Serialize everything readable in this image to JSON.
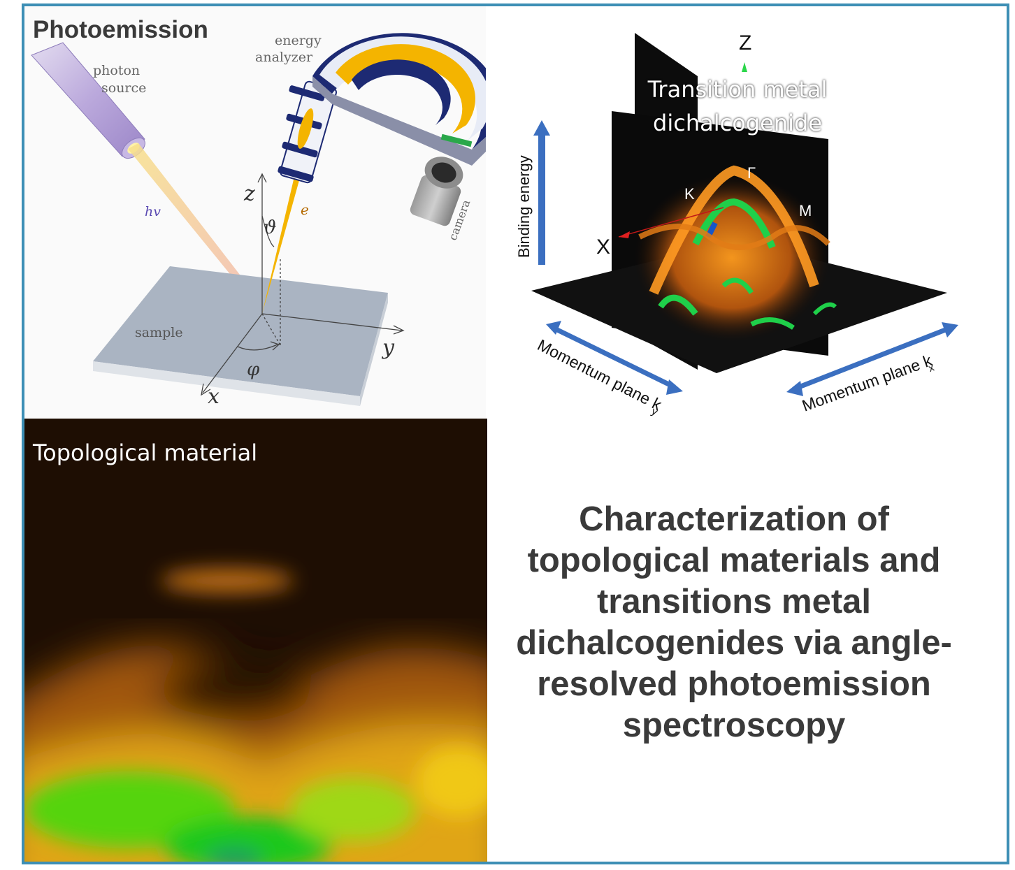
{
  "photoemission": {
    "heading": "Photoemission",
    "photon_source_line1": "photon",
    "photon_source_line2": "source",
    "analyzer_line1": "energy",
    "analyzer_line2": "analyzer",
    "camera": "camera",
    "hv": "hv",
    "e": "e",
    "z": "z",
    "theta": "ϑ",
    "sample": "sample",
    "phi": "φ",
    "x": "x",
    "y": "y"
  },
  "tmd": {
    "axis_z": "Z",
    "title_line1": "Transition metal",
    "title_line2": "dichalcogenide",
    "binding_energy": "Binding energy",
    "gamma": "Γ",
    "k": "K",
    "m": "M",
    "axis_x": "X",
    "momentum_ky": "Momentum plane k",
    "ky_sub": "y",
    "momentum_kx": "Momentum plane k",
    "kx_sub": "x"
  },
  "topological": {
    "label": "Topological material"
  },
  "main_title": {
    "line1": "Characterization of",
    "line2": "topological materials and",
    "line3": "transitions metal",
    "line4": "dichalcogenides via angle-",
    "line5": "resolved photoemission",
    "line6": "spectroscopy"
  },
  "colors": {
    "frame": "#3d8fb5",
    "arrow_blue": "#3b6fc0",
    "beam": "#f4b400",
    "analyzer_navy": "#1d2a73",
    "sample": "#a7b2c0",
    "title_text": "#3a3a3a"
  }
}
